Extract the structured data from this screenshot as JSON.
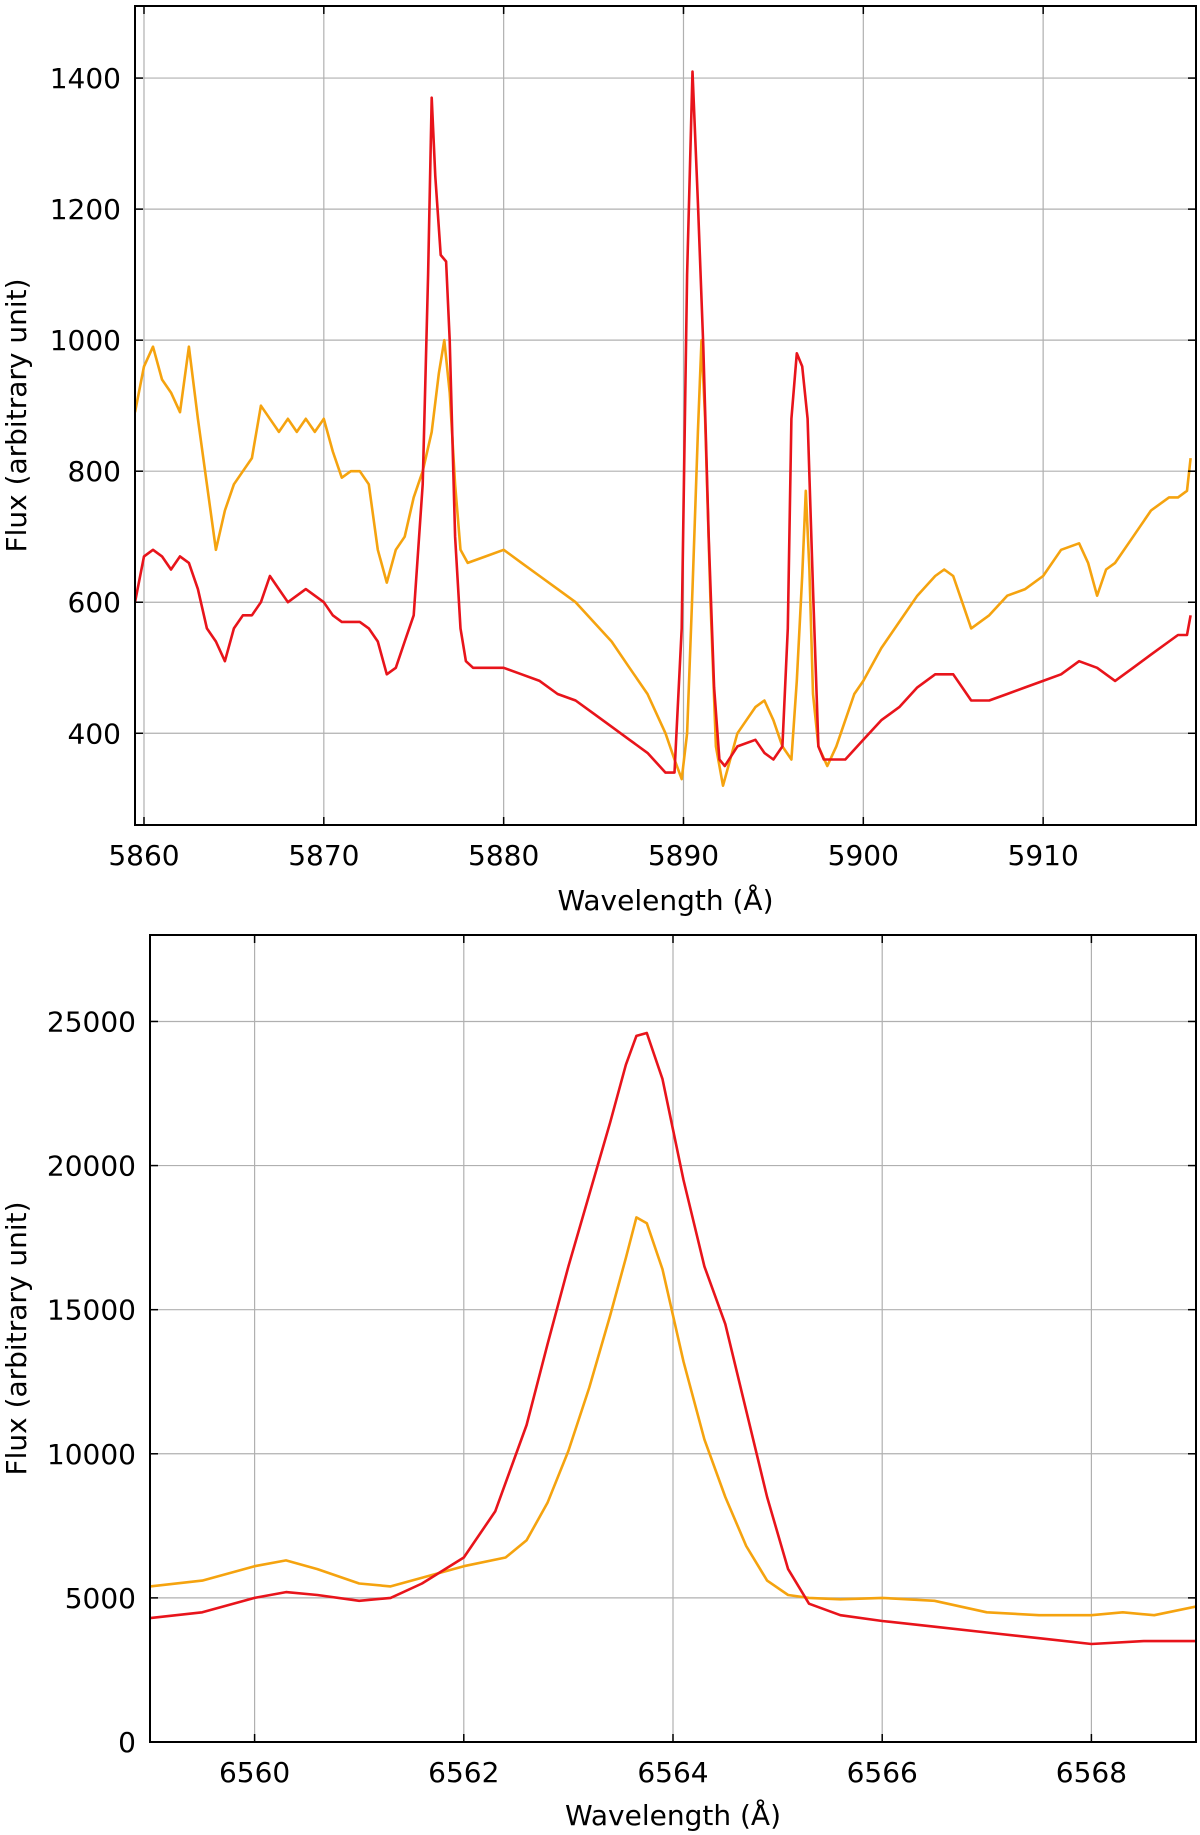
{
  "colors": {
    "red": "#e8141b",
    "orange": "#f5a30f",
    "grid": "#b0b0b0"
  },
  "chart_data": [
    {
      "type": "line",
      "title": "",
      "xlabel": "Wavelength (Å)",
      "ylabel": "Flux (arbitrary unit)",
      "xlim": [
        5859.5,
        5918.5
      ],
      "ylim": [
        260,
        1510
      ],
      "xticks": [
        5860,
        5870,
        5880,
        5890,
        5900,
        5910
      ],
      "xtick_labels": [
        "5860",
        "5870",
        "5880",
        "5890",
        "5900",
        "5910"
      ],
      "yticks": [
        400,
        600,
        800,
        1000,
        1200,
        1400
      ],
      "ytick_labels": [
        "400",
        "600",
        "800",
        "1000",
        "1200",
        "1400"
      ],
      "grid": true,
      "series": [
        {
          "color": "#f5a30f",
          "x": [
            5859.5,
            5860.0,
            5860.5,
            5861.0,
            5861.5,
            5862.0,
            5862.5,
            5863.0,
            5863.5,
            5863.8,
            5864.0,
            5864.5,
            5865.0,
            5865.5,
            5866.0,
            5866.5,
            5867.0,
            5867.5,
            5868.0,
            5868.5,
            5869.0,
            5869.5,
            5870.0,
            5870.5,
            5871.0,
            5871.5,
            5872.0,
            5872.5,
            5873.0,
            5873.5,
            5874.0,
            5874.5,
            5875.0,
            5875.5,
            5876.0,
            5876.4,
            5876.7,
            5877.0,
            5877.3,
            5877.6,
            5878.0,
            5879.0,
            5880.0,
            5881.0,
            5882.0,
            5883.0,
            5884.0,
            5885.0,
            5886.0,
            5887.0,
            5888.0,
            5889.0,
            5889.5,
            5889.9,
            5890.2,
            5890.5,
            5890.8,
            5891.0,
            5891.2,
            5891.5,
            5891.8,
            5892.2,
            5893.0,
            5893.5,
            5894.0,
            5894.5,
            5895.0,
            5895.5,
            5896.0,
            5896.3,
            5896.6,
            5896.8,
            5897.0,
            5897.2,
            5897.5,
            5898.0,
            5898.5,
            5899.0,
            5899.5,
            5900.0,
            5901.0,
            5902.0,
            5903.0,
            5904.0,
            5904.5,
            5905.0,
            5905.5,
            5906.0,
            5907.0,
            5908.0,
            5909.0,
            5910.0,
            5911.0,
            5912.0,
            5912.5,
            5913.0,
            5913.5,
            5914.0,
            5915.0,
            5916.0,
            5917.0,
            5917.5,
            5918.0,
            5918.2
          ],
          "y": [
            890,
            960,
            990,
            940,
            920,
            890,
            990,
            880,
            780,
            720,
            680,
            740,
            780,
            800,
            820,
            900,
            880,
            860,
            880,
            860,
            880,
            860,
            880,
            830,
            790,
            800,
            800,
            780,
            680,
            630,
            680,
            700,
            760,
            800,
            860,
            950,
            1000,
            920,
            780,
            680,
            660,
            670,
            680,
            660,
            640,
            620,
            600,
            570,
            540,
            500,
            460,
            400,
            360,
            330,
            400,
            620,
            860,
            1000,
            880,
            600,
            380,
            320,
            400,
            420,
            440,
            450,
            420,
            380,
            360,
            480,
            640,
            770,
            650,
            460,
            380,
            350,
            380,
            420,
            460,
            480,
            530,
            570,
            610,
            640,
            650,
            640,
            600,
            560,
            580,
            610,
            620,
            640,
            680,
            690,
            660,
            610,
            650,
            660,
            700,
            740,
            760,
            760,
            770,
            820
          ]
        },
        {
          "color": "#e8141b",
          "x": [
            5859.5,
            5860.0,
            5860.5,
            5861.0,
            5861.5,
            5862.0,
            5862.5,
            5863.0,
            5863.5,
            5864.0,
            5864.5,
            5865.0,
            5865.5,
            5866.0,
            5866.5,
            5867.0,
            5867.5,
            5868.0,
            5869.0,
            5870.0,
            5870.5,
            5871.0,
            5872.0,
            5872.5,
            5873.0,
            5873.5,
            5874.0,
            5874.5,
            5875.0,
            5875.5,
            5875.8,
            5876.0,
            5876.2,
            5876.5,
            5876.8,
            5877.0,
            5877.3,
            5877.6,
            5877.9,
            5878.3,
            5879.0,
            5880.0,
            5881.0,
            5882.0,
            5883.0,
            5884.0,
            5885.0,
            5886.0,
            5887.0,
            5888.0,
            5889.0,
            5889.5,
            5889.9,
            5890.2,
            5890.5,
            5890.8,
            5891.1,
            5891.4,
            5891.7,
            5892.0,
            5892.3,
            5893.0,
            5894.0,
            5894.5,
            5895.0,
            5895.5,
            5895.8,
            5896.0,
            5896.3,
            5896.6,
            5896.9,
            5897.2,
            5897.5,
            5897.8,
            5898.2,
            5899.0,
            5900.0,
            5901.0,
            5902.0,
            5903.0,
            5904.0,
            5905.0,
            5905.5,
            5906.0,
            5907.0,
            5908.0,
            5909.0,
            5910.0,
            5911.0,
            5912.0,
            5913.0,
            5914.0,
            5915.0,
            5916.0,
            5917.0,
            5917.5,
            5918.0,
            5918.2
          ],
          "y": [
            600,
            670,
            680,
            670,
            650,
            670,
            660,
            620,
            560,
            540,
            510,
            560,
            580,
            580,
            600,
            640,
            620,
            600,
            620,
            600,
            580,
            570,
            570,
            560,
            540,
            490,
            500,
            540,
            580,
            780,
            1100,
            1370,
            1250,
            1130,
            1120,
            1000,
            700,
            560,
            510,
            500,
            500,
            500,
            490,
            480,
            460,
            450,
            430,
            410,
            390,
            370,
            340,
            340,
            560,
            1100,
            1410,
            1210,
            990,
            700,
            470,
            360,
            350,
            380,
            390,
            370,
            360,
            380,
            560,
            880,
            980,
            960,
            880,
            620,
            380,
            360,
            360,
            360,
            390,
            420,
            440,
            470,
            490,
            490,
            470,
            450,
            450,
            460,
            470,
            480,
            490,
            510,
            500,
            480,
            500,
            520,
            540,
            550,
            550,
            580
          ]
        }
      ]
    },
    {
      "type": "line",
      "title": "",
      "xlabel": "Wavelength (Å)",
      "ylabel": "Flux (arbitrary unit)",
      "xlim": [
        6559.0,
        6569.0
      ],
      "ylim": [
        0,
        28000
      ],
      "xticks": [
        6560,
        6562,
        6564,
        6566,
        6568
      ],
      "xtick_labels": [
        "6560",
        "6562",
        "6564",
        "6566",
        "6568"
      ],
      "yticks": [
        0,
        5000,
        10000,
        15000,
        20000,
        25000
      ],
      "ytick_labels": [
        "0",
        "5000",
        "10000",
        "15000",
        "20000",
        "25000"
      ],
      "grid": true,
      "series": [
        {
          "color": "#f5a30f",
          "x": [
            6559.0,
            6559.5,
            6560.0,
            6560.3,
            6560.6,
            6561.0,
            6561.3,
            6561.6,
            6562.0,
            6562.4,
            6562.6,
            6562.8,
            6563.0,
            6563.2,
            6563.4,
            6563.55,
            6563.65,
            6563.75,
            6563.9,
            6564.1,
            6564.3,
            6564.5,
            6564.7,
            6564.9,
            6565.1,
            6565.3,
            6565.6,
            6566.0,
            6566.5,
            6567.0,
            6567.5,
            6568.0,
            6568.3,
            6568.6,
            6569.0
          ],
          "y": [
            5400,
            5600,
            6100,
            6300,
            6000,
            5500,
            5400,
            5700,
            6100,
            6400,
            7000,
            8300,
            10100,
            12300,
            14800,
            16800,
            18200,
            18000,
            16400,
            13200,
            10500,
            8500,
            6800,
            5600,
            5100,
            5000,
            4950,
            5000,
            4900,
            4500,
            4400,
            4400,
            4500,
            4400,
            4700
          ]
        },
        {
          "color": "#e8141b",
          "x": [
            6559.0,
            6559.5,
            6560.0,
            6560.3,
            6560.6,
            6561.0,
            6561.3,
            6561.6,
            6562.0,
            6562.3,
            6562.6,
            6562.8,
            6563.0,
            6563.2,
            6563.4,
            6563.55,
            6563.65,
            6563.75,
            6563.9,
            6564.1,
            6564.3,
            6564.5,
            6564.7,
            6564.9,
            6565.1,
            6565.3,
            6565.6,
            6566.0,
            6566.5,
            6567.0,
            6567.5,
            6568.0,
            6568.5,
            6569.0
          ],
          "y": [
            4300,
            4500,
            5000,
            5200,
            5100,
            4900,
            5000,
            5500,
            6400,
            8000,
            11000,
            13800,
            16500,
            19000,
            21500,
            23500,
            24500,
            24600,
            23000,
            19500,
            16500,
            14500,
            11500,
            8500,
            6000,
            4800,
            4400,
            4200,
            4000,
            3800,
            3600,
            3400,
            3500,
            3500
          ]
        }
      ]
    }
  ]
}
